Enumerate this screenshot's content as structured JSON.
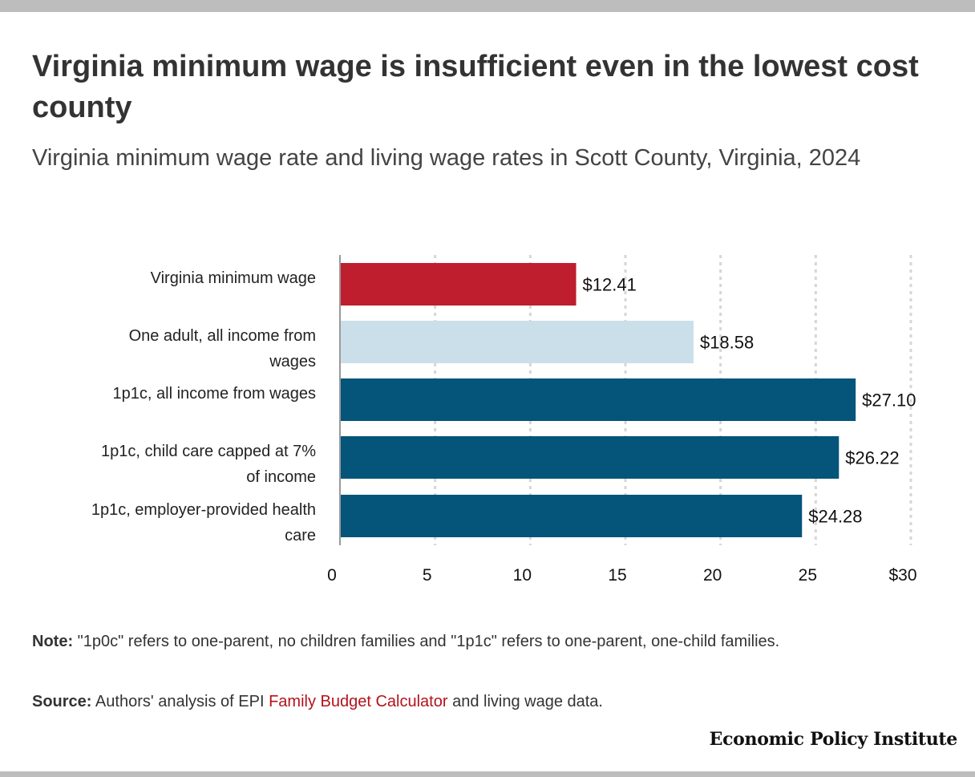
{
  "title": "Virginia minimum wage is insufficient even in the lowest cost county",
  "subtitle": "Virginia minimum wage rate and living wage rates in Scott County, Virginia, 2024",
  "chart_data": {
    "type": "bar",
    "orientation": "horizontal",
    "categories": [
      "Virginia minimum wage",
      "One adult, all income from wages",
      "1p1c, all income from wages",
      "1p1c, child care capped at 7% of income",
      "1p1c, employer-provided health care"
    ],
    "values": [
      12.41,
      18.58,
      27.1,
      26.22,
      24.28
    ],
    "value_labels": [
      "$12.41",
      "$18.58",
      "$27.10",
      "$26.22",
      "$24.28"
    ],
    "bar_colors": [
      "#be1e2d",
      "#cbdfea",
      "#05547a",
      "#05547a",
      "#05547a"
    ],
    "xlim": [
      0,
      30
    ],
    "x_ticks": [
      0,
      5,
      10,
      15,
      20,
      25,
      30
    ],
    "x_tick_labels": [
      "0",
      "5",
      "10",
      "15",
      "20",
      "25",
      "$30"
    ],
    "grid": "vertical dotted",
    "title": "Virginia minimum wage is insufficient even in the lowest cost county",
    "xlabel": "",
    "ylabel": ""
  },
  "note": {
    "label": "Note:",
    "text": "\"1p0c\" refers to one-parent, no children families and \"1p1c\" refers to one-parent, one-child families."
  },
  "source": {
    "label": "Source:",
    "text_before": "Authors' analysis of EPI",
    "link_text": "Family Budget Calculator",
    "text_after": "and living wage data."
  },
  "brand": "Economic Policy Institute",
  "colors": {
    "minimum_wage": "#be1e2d",
    "one_adult": "#cbdfea",
    "one_parent_one_child": "#05547a",
    "link": "#b5121b"
  }
}
